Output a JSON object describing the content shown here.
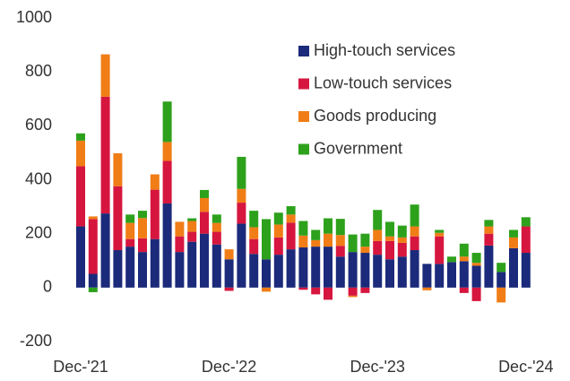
{
  "chart_data": {
    "type": "stacked_bar",
    "categories": [
      "Dec-'21",
      null,
      null,
      null,
      null,
      null,
      null,
      null,
      null,
      null,
      null,
      null,
      "Dec-'22",
      null,
      null,
      null,
      null,
      null,
      null,
      null,
      null,
      null,
      null,
      null,
      "Dec-'23",
      null,
      null,
      null,
      null,
      null,
      null,
      null,
      null,
      null,
      null,
      null,
      "Dec-'24"
    ],
    "series": [
      {
        "name": "High-touch services",
        "color": "#1b2a7a",
        "values": [
          227,
          51,
          275,
          139,
          152,
          132,
          180,
          312,
          132,
          170,
          200,
          160,
          105,
          237,
          125,
          105,
          122,
          142,
          149,
          152,
          152,
          115,
          132,
          129,
          122,
          105,
          115,
          139,
          88,
          88,
          95,
          98,
          81,
          156,
          58,
          146,
          129
        ]
      },
      {
        "name": "Low-touch services",
        "color": "#d6163f",
        "values": [
          223,
          203,
          433,
          237,
          28,
          51,
          183,
          158,
          58,
          37,
          81,
          47,
          -12,
          78,
          55,
          0,
          64,
          99,
          -8,
          -25,
          -45,
          40,
          -30,
          -20,
          51,
          68,
          51,
          51,
          0,
          102,
          0,
          -20,
          -50,
          44,
          0,
          0,
          98
        ]
      },
      {
        "name": "Goods producing",
        "color": "#f07d16",
        "values": [
          95,
          10,
          157,
          122,
          60,
          75,
          57,
          70,
          54,
          40,
          51,
          33,
          37,
          51,
          44,
          -15,
          48,
          30,
          44,
          24,
          48,
          40,
          -5,
          23,
          41,
          17,
          20,
          37,
          -10,
          13,
          0,
          17,
          11,
          27,
          -55,
          40,
          0
        ]
      },
      {
        "name": "Government",
        "color": "#2ea11c",
        "values": [
          27,
          -17,
          0,
          0,
          31,
          27,
          0,
          150,
          0,
          10,
          30,
          31,
          0,
          119,
          61,
          149,
          44,
          31,
          54,
          38,
          57,
          60,
          65,
          48,
          74,
          54,
          44,
          81,
          0,
          11,
          20,
          48,
          37,
          24,
          34,
          28,
          34
        ]
      }
    ],
    "ylim": [
      -200,
      1000
    ],
    "yticks": [
      -200,
      0,
      200,
      400,
      600,
      800,
      1000
    ],
    "legend": "upper right"
  }
}
